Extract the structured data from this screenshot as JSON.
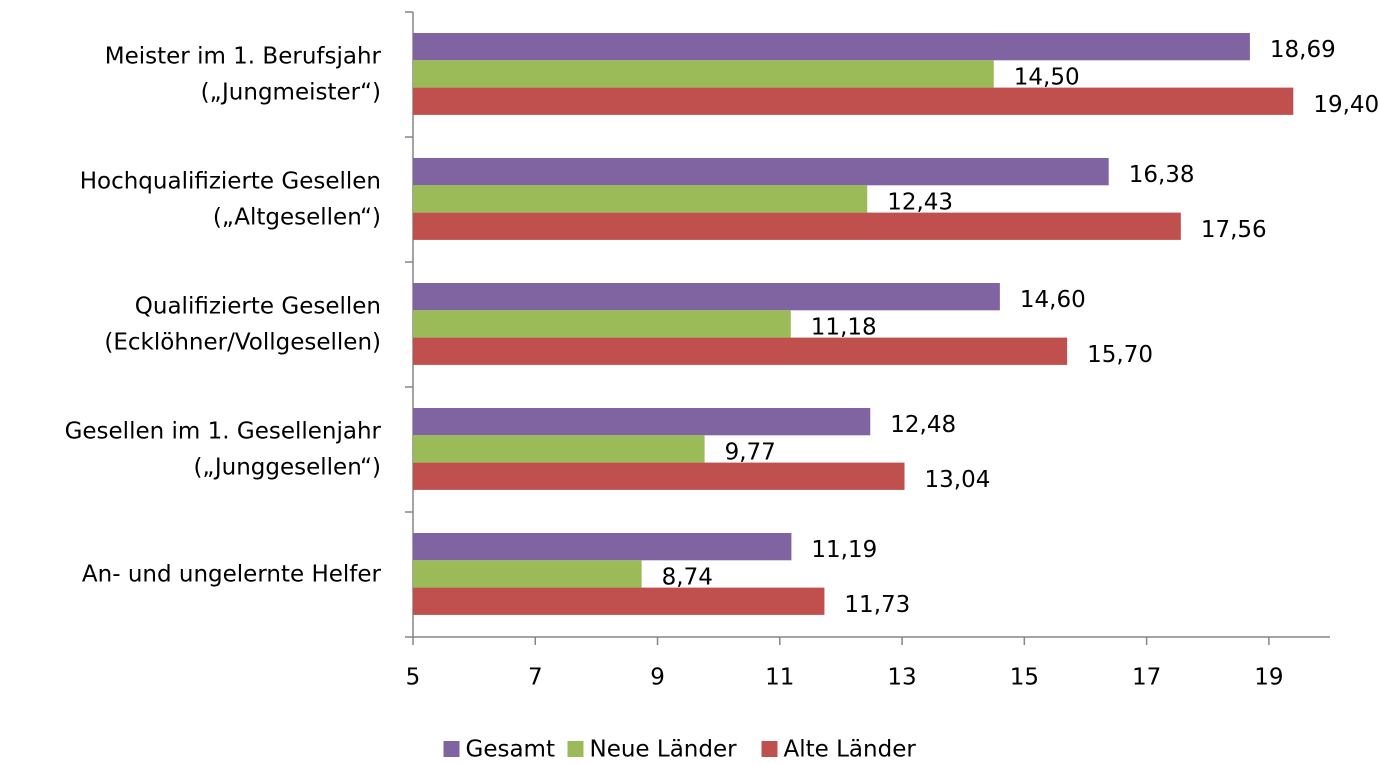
{
  "chart_data": {
    "type": "hbar",
    "categories": [
      [
        "Meister im 1. Berufsjahr",
        "(„Jungmeister“)"
      ],
      [
        "Hochqualifizierte Gesellen",
        "(„Altgesellen“)"
      ],
      [
        "Qualifizierte Gesellen",
        "(Ecklöhner/Vollgesellen)"
      ],
      [
        "Gesellen im 1. Gesellenjahr",
        "(„Junggesellen“)"
      ],
      [
        "An- und ungelernte Helfer"
      ]
    ],
    "series": [
      {
        "name": "Gesamt",
        "color": "#8064a2",
        "values": [
          18.69,
          16.38,
          14.6,
          12.48,
          11.19
        ],
        "value_labels": [
          "18,69",
          "16,38",
          "14,60",
          "12,48",
          "11,19"
        ]
      },
      {
        "name": "Neue Länder",
        "color": "#9bbb59",
        "values": [
          14.5,
          12.43,
          11.18,
          9.77,
          8.74
        ],
        "value_labels": [
          "14,50",
          "12,43",
          "11,18",
          "9,77",
          "8,74"
        ]
      },
      {
        "name": "Alte Länder",
        "color": "#c0504d",
        "values": [
          19.4,
          17.56,
          15.7,
          13.04,
          11.73
        ],
        "value_labels": [
          "19,40",
          "17,56",
          "15,70",
          "13,04",
          "11,73"
        ]
      }
    ],
    "xlim": [
      5,
      20
    ],
    "xticks": [
      5,
      7,
      9,
      11,
      13,
      15,
      17,
      19
    ],
    "legend": "bottom"
  }
}
